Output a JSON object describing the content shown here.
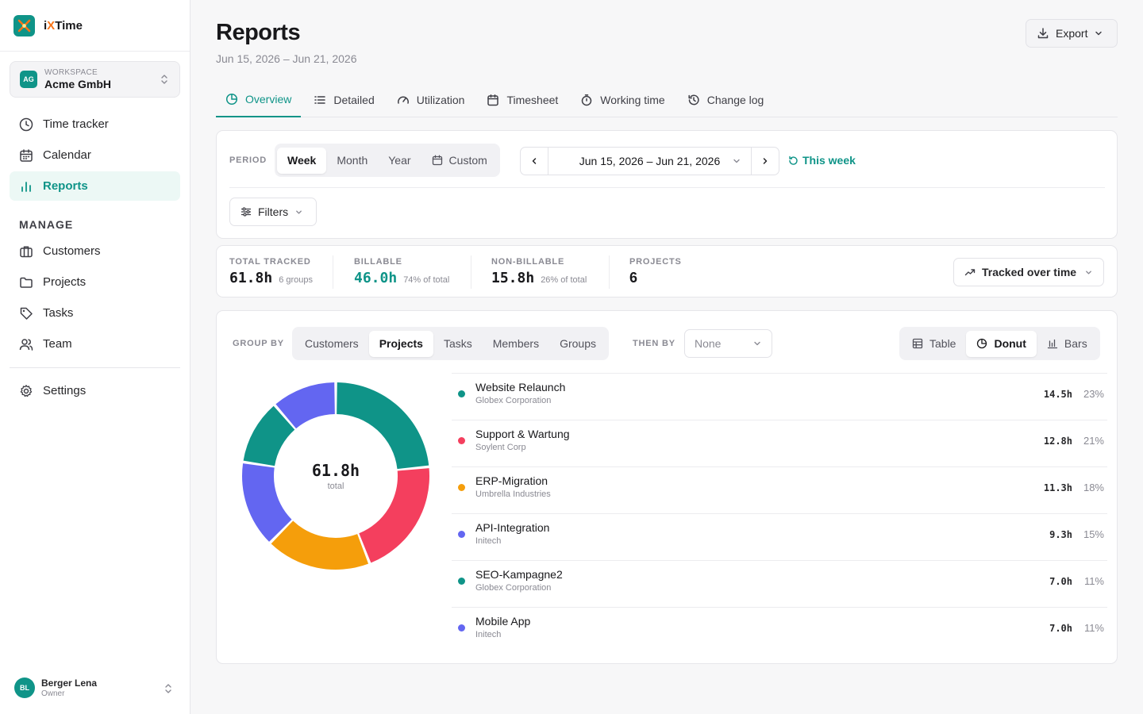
{
  "app": {
    "name_prefix": "i",
    "name_x": "X",
    "name_suffix": "Time"
  },
  "workspace": {
    "label": "WORKSPACE",
    "name": "Acme GmbH",
    "initials": "AG"
  },
  "nav": {
    "main": [
      {
        "label": "Time tracker",
        "icon": "clock-icon"
      },
      {
        "label": "Calendar",
        "icon": "calendar-icon"
      },
      {
        "label": "Reports",
        "icon": "bar-chart-icon",
        "active": true
      }
    ],
    "manage_label": "MANAGE",
    "manage": [
      {
        "label": "Customers",
        "icon": "briefcase-icon"
      },
      {
        "label": "Projects",
        "icon": "folder-icon"
      },
      {
        "label": "Tasks",
        "icon": "tag-icon"
      },
      {
        "label": "Team",
        "icon": "users-icon"
      }
    ],
    "settings": {
      "label": "Settings",
      "icon": "gear-icon"
    }
  },
  "user": {
    "name": "Berger Lena",
    "role": "Owner",
    "initials": "BL"
  },
  "header": {
    "title": "Reports",
    "subtitle": "Jun 15, 2026 – Jun 21, 2026",
    "export_label": "Export"
  },
  "tabs": [
    {
      "label": "Overview",
      "icon": "pie-icon",
      "active": true
    },
    {
      "label": "Detailed",
      "icon": "list-icon"
    },
    {
      "label": "Utilization",
      "icon": "gauge-icon"
    },
    {
      "label": "Timesheet",
      "icon": "calendar-icon"
    },
    {
      "label": "Working time",
      "icon": "stopwatch-icon"
    },
    {
      "label": "Change log",
      "icon": "history-icon"
    }
  ],
  "period": {
    "label": "PERIOD",
    "options": [
      "Week",
      "Month",
      "Year",
      "Custom"
    ],
    "selected": "Week",
    "range": "Jun 15, 2026 – Jun 21, 2026",
    "this_week": "This week",
    "filters_label": "Filters"
  },
  "stats": [
    {
      "label": "TOTAL TRACKED",
      "value": "61.8h",
      "note": "6 groups"
    },
    {
      "label": "BILLABLE",
      "value": "46.0h",
      "note": "74% of total"
    },
    {
      "label": "NON-BILLABLE",
      "value": "15.8h",
      "note": "26% of total"
    },
    {
      "label": "PROJECTS",
      "value": "6",
      "note": ""
    }
  ],
  "tracked_over_time": "Tracked over time",
  "group": {
    "label": "GROUP BY",
    "options": [
      "Customers",
      "Projects",
      "Tasks",
      "Members",
      "Groups"
    ],
    "selected": "Projects",
    "then_label": "THEN BY",
    "then_value": "None",
    "views": [
      "Table",
      "Donut",
      "Bars"
    ],
    "view_selected": "Donut"
  },
  "donut": {
    "total": "61.8h",
    "total_label": "total"
  },
  "chart_data": {
    "type": "pie",
    "categories": [
      "Website Relaunch",
      "Support & Wartung",
      "ERP-Migration",
      "API-Integration",
      "SEO-Kampagne2",
      "Mobile App"
    ],
    "values": [
      14.5,
      12.8,
      11.3,
      9.3,
      7.0,
      7.0
    ],
    "colors": [
      "#0f9488",
      "#f43f5e",
      "#f59e0b",
      "#6366f1",
      "#0f9488",
      "#6366f1"
    ]
  },
  "rows": [
    {
      "name": "Website Relaunch",
      "customer": "Globex Corporation",
      "hours": "14.5h",
      "pct": "23%",
      "color": "#0f9488"
    },
    {
      "name": "Support & Wartung",
      "customer": "Soylent Corp",
      "hours": "12.8h",
      "pct": "21%",
      "color": "#f43f5e"
    },
    {
      "name": "ERP-Migration",
      "customer": "Umbrella Industries",
      "hours": "11.3h",
      "pct": "18%",
      "color": "#f59e0b"
    },
    {
      "name": "API-Integration",
      "customer": "Initech",
      "hours": "9.3h",
      "pct": "15%",
      "color": "#6366f1"
    },
    {
      "name": "SEO-Kampagne2",
      "customer": "Globex Corporation",
      "hours": "7.0h",
      "pct": "11%",
      "color": "#0f9488"
    },
    {
      "name": "Mobile App",
      "customer": "Initech",
      "hours": "7.0h",
      "pct": "11%",
      "color": "#6366f1"
    }
  ]
}
